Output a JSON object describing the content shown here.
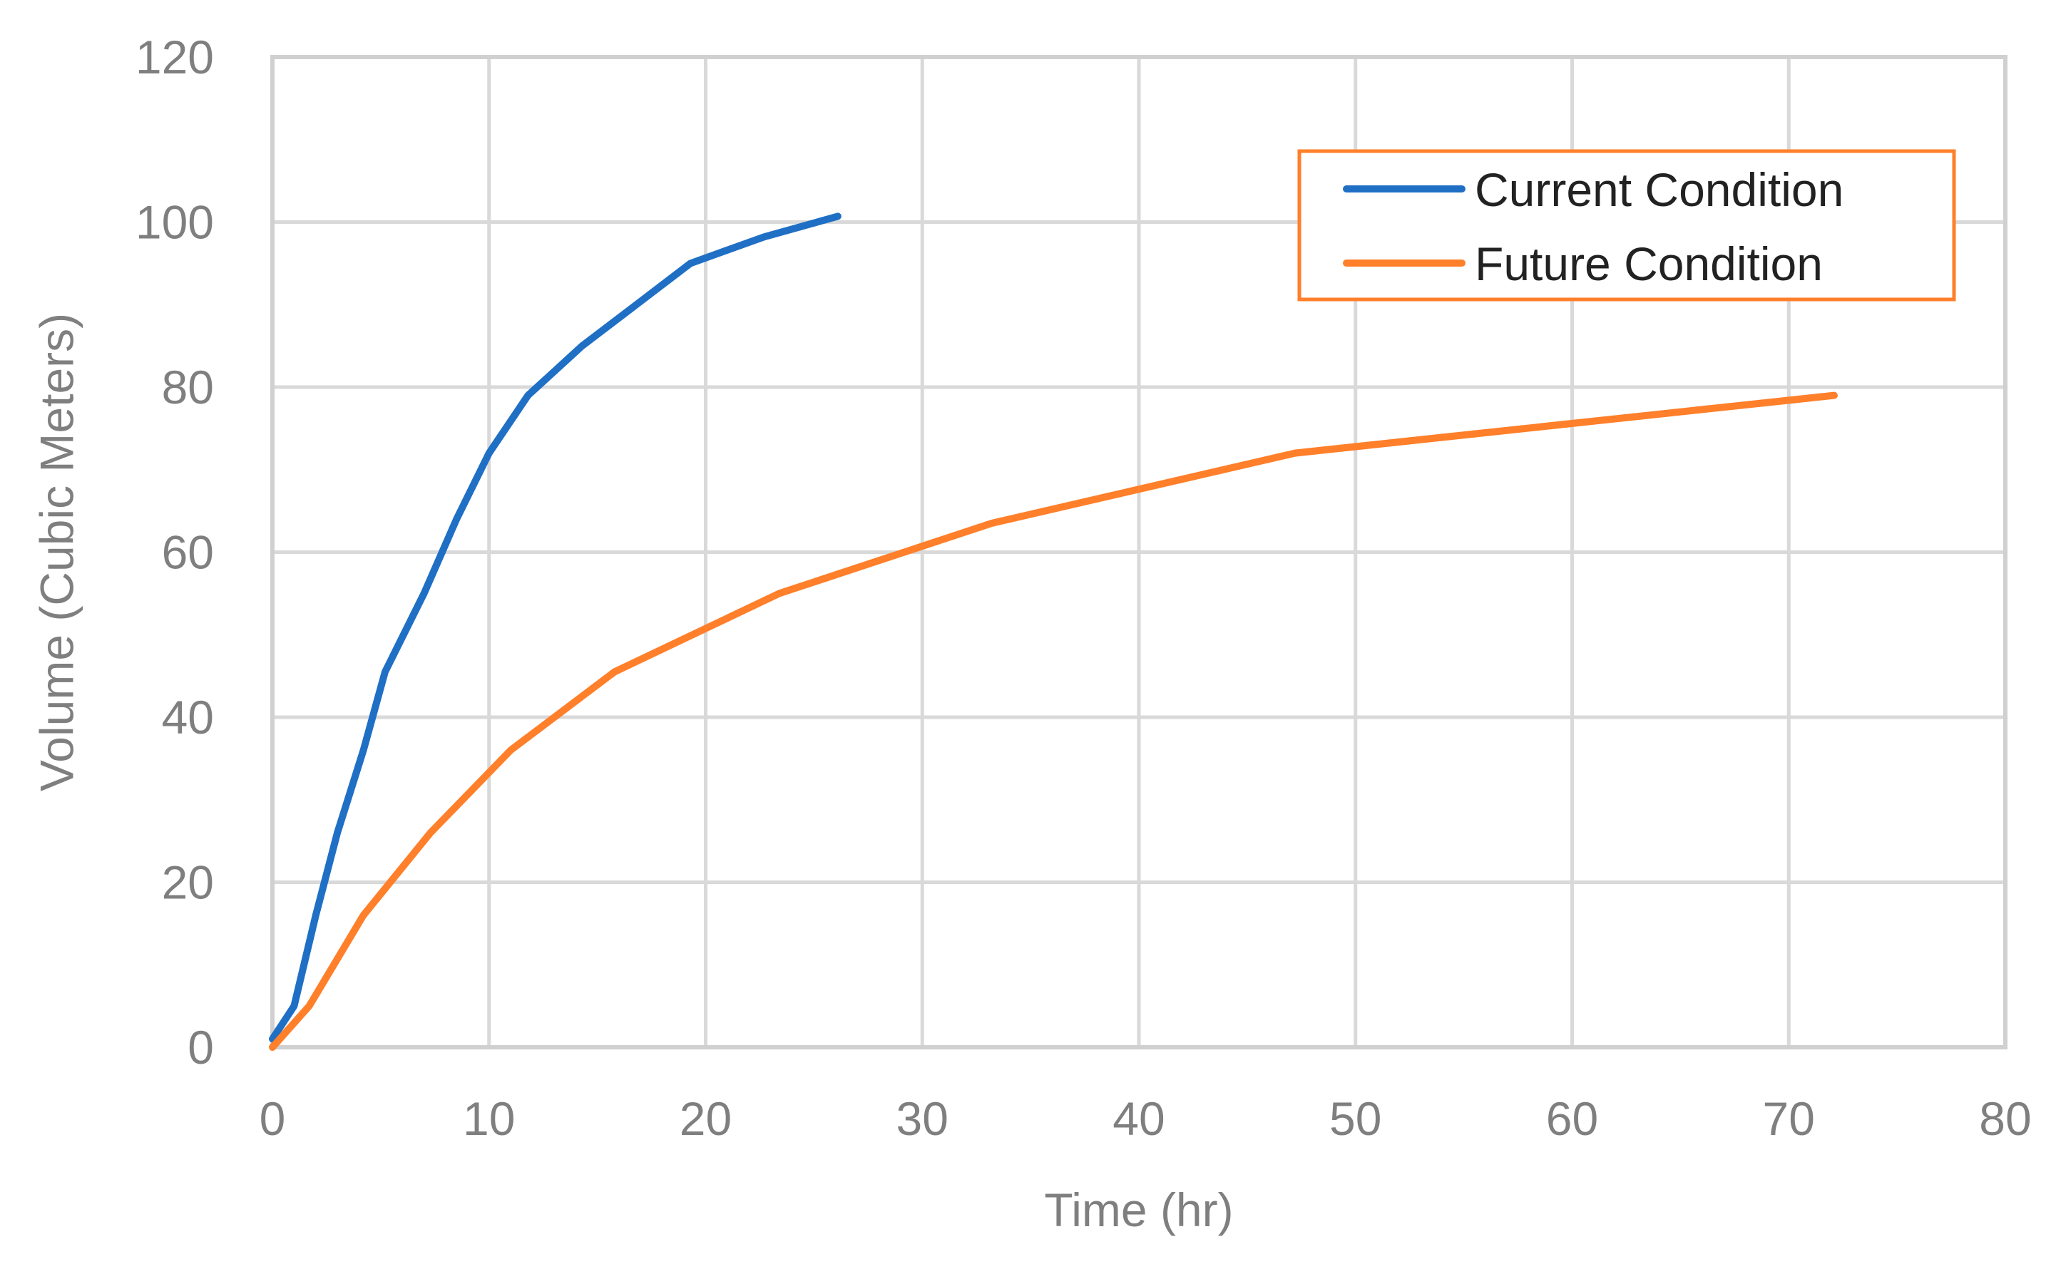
{
  "chart_data": {
    "type": "line",
    "title": "",
    "xlabel": "Time (hr)",
    "ylabel": "Volume (Cubic Meters)",
    "xlim": [
      0,
      80
    ],
    "ylim": [
      0,
      120
    ],
    "xticks": [
      0,
      10,
      20,
      30,
      40,
      50,
      60,
      70,
      80
    ],
    "yticks": [
      0,
      20,
      40,
      60,
      80,
      100,
      120
    ],
    "grid": true,
    "legend_position": "top-right",
    "series": [
      {
        "name": "Current Condition",
        "color": "#1f6fc5",
        "points": [
          [
            0,
            1
          ],
          [
            1,
            5
          ],
          [
            2,
            16
          ],
          [
            3,
            26
          ],
          [
            4.2,
            36
          ],
          [
            5.2,
            45.5
          ],
          [
            7,
            55
          ],
          [
            8.5,
            64
          ],
          [
            10,
            72
          ],
          [
            11.8,
            79
          ],
          [
            14.3,
            85
          ],
          [
            16.8,
            90
          ],
          [
            19.3,
            95
          ],
          [
            22.7,
            98.2
          ],
          [
            26.1,
            100.7
          ]
        ]
      },
      {
        "name": "Future Condition",
        "color": "#ff7f2a",
        "points": [
          [
            0,
            0
          ],
          [
            1.7,
            5
          ],
          [
            4.2,
            16
          ],
          [
            7.3,
            26
          ],
          [
            11,
            36
          ],
          [
            15.8,
            45.5
          ],
          [
            23.4,
            55
          ],
          [
            33.2,
            63.5
          ],
          [
            47.2,
            72
          ],
          [
            72.1,
            79
          ]
        ]
      }
    ]
  }
}
